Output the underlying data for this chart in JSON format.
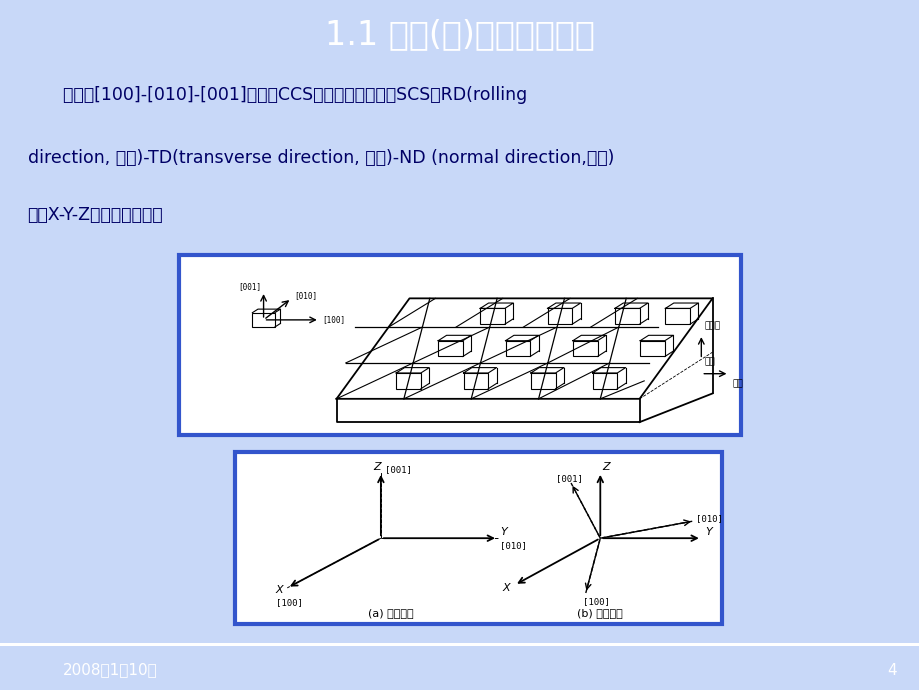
{
  "title": "1.1 取向(差)的定义及表征",
  "title_bg_color": "#4472C4",
  "title_text_color": "#FFFFFF",
  "body_bg_color": "#C8D8F8",
  "footer_bg_color": "#4472C4",
  "footer_text": "2008年1月10日",
  "footer_page": "4",
  "footer_text_color": "#FFFFFF",
  "main_text_line1": "    晶体的[100]-[010]-[001]坐标系CCS相对于样品坐标系SCS：RD(rolling",
  "main_text_line2": "direction, 轧向)-TD(transverse direction, 横向)-ND (normal direction,法向)",
  "main_text_line3": "（或X-Y-Z）的位置关系。",
  "text_color": "#000066",
  "box_edge_color": "#3355CC",
  "box_bg_color": "#FFFFFF"
}
